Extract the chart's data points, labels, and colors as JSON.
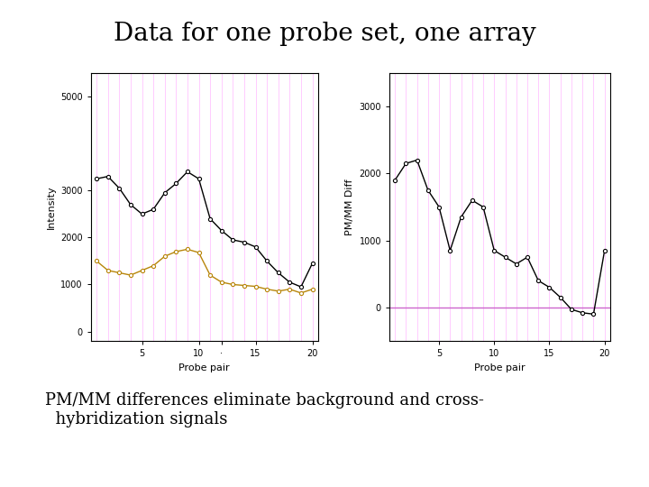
{
  "title": "Data for one probe set, one array",
  "title_fontsize": 20,
  "subtitle_line1": "PM/MM differences eliminate background and cross-",
  "subtitle_line2": "  hybridization signals",
  "subtitle_fontsize": 13,
  "background_color": "#ffffff",
  "plot_bg_color": "#ffffff",
  "vline_color": "#ffccff",
  "hline_color": "#cc66cc",
  "probe_pairs": [
    1,
    2,
    3,
    4,
    5,
    6,
    7,
    8,
    9,
    10,
    11,
    12,
    13,
    14,
    15,
    16,
    17,
    18,
    19,
    20
  ],
  "pm_values": [
    3250,
    3300,
    3050,
    2700,
    2500,
    2600,
    2950,
    3150,
    3400,
    3250,
    2400,
    2150,
    1950,
    1900,
    1800,
    1500,
    1250,
    1050,
    950,
    1450
  ],
  "mm_values": [
    1500,
    1300,
    1250,
    1200,
    1300,
    1400,
    1600,
    1700,
    1750,
    1680,
    1200,
    1050,
    1000,
    980,
    960,
    900,
    860,
    900,
    820,
    900
  ],
  "diff_values": [
    1900,
    2150,
    2200,
    1750,
    1500,
    850,
    1350,
    1600,
    1500,
    850,
    750,
    650,
    750,
    400,
    300,
    150,
    -30,
    -80,
    -100,
    850
  ],
  "pm_color": "#000000",
  "mm_color": "#b8860b",
  "diff_color": "#000000",
  "left_ylabel": "Intensity",
  "right_ylabel": "PM/MM Diff",
  "xlabel": "Probe pair",
  "left_ylim": [
    -200,
    5500
  ],
  "left_yticks": [
    0,
    1000,
    2000,
    3000,
    5000
  ],
  "right_ylim": [
    -500,
    3500
  ],
  "right_yticks": [
    0,
    1000,
    2000,
    3000
  ],
  "xlim": [
    0.5,
    20.5
  ],
  "left_xticks": [
    5,
    10,
    15,
    20
  ],
  "left_xticklabels": [
    "5",
    "10",
    "·",
    "15",
    "20"
  ],
  "left_xticks_full": [
    5,
    10,
    12,
    15,
    20
  ],
  "right_xticks": [
    5,
    10,
    15,
    20
  ],
  "marker": "o",
  "marker_size": 3,
  "line_width": 1.0
}
